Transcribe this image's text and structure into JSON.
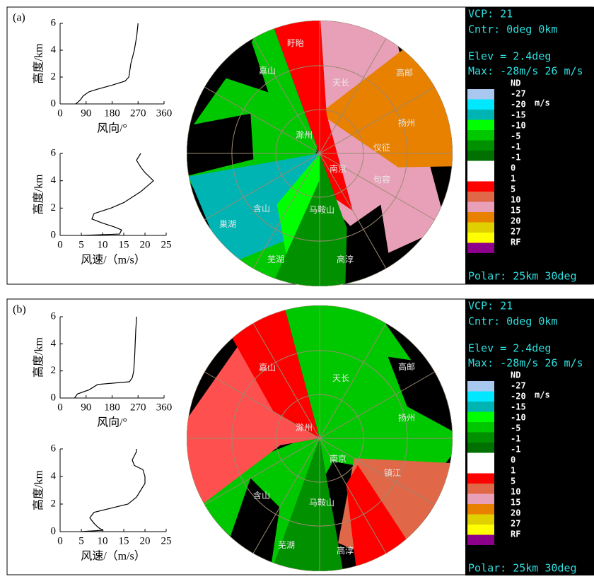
{
  "panels": [
    {
      "label": "(a)",
      "places": [
        "盱眙",
        "嘉山",
        "天长",
        "高邮",
        "滁州",
        "扬州",
        "仪征",
        "南京",
        "句容",
        "含山",
        "马鞍山",
        "巢湖",
        "芜湖",
        "高淳"
      ],
      "info": {
        "vcp": "VCP: 21",
        "cntr": "Cntr:  0deg  0km",
        "elev": "Elev = 2.4deg",
        "max": "Max: -28m/s  26 m/s",
        "unit": "m/s",
        "polar": "Polar:  25km 30deg",
        "legend_labels": [
          "ND",
          "-27",
          "-20",
          "-15",
          "-10",
          "-5",
          "-1",
          "-1",
          "0",
          "1",
          "5",
          "10",
          "15",
          "20",
          "27",
          "RF"
        ],
        "legend_colors": [
          "#a8c8f0",
          "#00e8ff",
          "#00b4b4",
          "#00ff00",
          "#00c800",
          "#009000",
          "#007000",
          "#ffffff",
          "#ffffff",
          "#ff0000",
          "#e06848",
          "#e8a0b8",
          "#e88000",
          "#e0d000",
          "#ffff00",
          "#8c008c"
        ]
      }
    },
    {
      "label": "(b)",
      "places": [
        "嘉山",
        "天长",
        "高邮",
        "滁州",
        "扬州",
        "南京",
        "镇江",
        "含山",
        "马鞍山",
        "芜湖",
        "高淳"
      ],
      "info": {
        "vcp": "VCP: 21",
        "cntr": "Cntr:  0deg  0km",
        "elev": "Elev = 2.4deg",
        "max": "Max: -28m/s  26 m/s",
        "unit": "m/s",
        "polar": "Polar:  25km 30deg",
        "legend_labels": [
          "ND",
          "-27",
          "-20",
          "-15",
          "-10",
          "-5",
          "-1",
          "-1",
          "0",
          "1",
          "5",
          "10",
          "15",
          "20",
          "27",
          "RF"
        ],
        "legend_colors": [
          "#a8c8f0",
          "#00e8ff",
          "#00b4b4",
          "#00ff00",
          "#00c800",
          "#009000",
          "#007000",
          "#ffffff",
          "#ffffff",
          "#ff0000",
          "#e06848",
          "#e8a0b8",
          "#e88000",
          "#e0d000",
          "#ffff00",
          "#8c008c"
        ]
      }
    }
  ],
  "chart_data": [
    {
      "type": "line",
      "x": [
        54,
        60,
        70,
        80,
        100,
        130,
        180,
        225,
        238,
        245,
        257,
        265,
        270
      ],
      "values": [
        0,
        0.1,
        0.3,
        0.6,
        0.9,
        1.1,
        1.4,
        1.7,
        2.0,
        3.0,
        4.0,
        5.0,
        6.0
      ],
      "xlim": [
        0,
        360
      ],
      "xticks": [
        0,
        90,
        180,
        270,
        360
      ],
      "ylim": [
        0,
        6
      ],
      "yticks": [
        0,
        2,
        4,
        6
      ],
      "xlabel": "风向/°",
      "ylabel": "高度/km",
      "color": "#000000"
    },
    {
      "type": "line",
      "x": [
        5,
        14,
        14.5,
        13,
        10,
        7.5,
        8,
        12,
        15,
        17,
        19,
        20.5,
        22,
        21,
        20,
        19,
        18,
        19
      ],
      "values": [
        0,
        0.1,
        0.4,
        0.6,
        0.9,
        1.2,
        1.6,
        2.0,
        2.4,
        2.8,
        3.2,
        3.6,
        4.0,
        4.3,
        4.6,
        5.0,
        5.5,
        6.0
      ],
      "xlim": [
        0,
        25
      ],
      "xticks": [
        0,
        5,
        10,
        15,
        20,
        25
      ],
      "ylim": [
        0,
        6
      ],
      "yticks": [
        0,
        2,
        4,
        6
      ],
      "xlabel": "风速/（m/s）",
      "ylabel": "高度/km",
      "color": "#000000"
    },
    {
      "type": "line",
      "x": [
        50,
        60,
        100,
        130,
        240,
        250,
        255,
        258,
        260,
        262,
        265
      ],
      "values": [
        0,
        0.3,
        0.6,
        1.0,
        1.2,
        1.5,
        2.0,
        3.0,
        4.0,
        5.0,
        6.0
      ],
      "xlim": [
        0,
        360
      ],
      "xticks": [
        0,
        90,
        180,
        270,
        360
      ],
      "ylim": [
        0,
        6
      ],
      "yticks": [
        0,
        2,
        4,
        6
      ],
      "xlabel": "风向/°",
      "ylabel": "高度/km",
      "color": "#000000"
    },
    {
      "type": "line",
      "x": [
        5,
        10,
        9,
        8,
        7,
        8,
        12,
        16,
        18,
        19,
        20,
        20,
        19.5,
        17.5,
        17,
        18,
        18
      ],
      "values": [
        0,
        0.1,
        0.3,
        0.6,
        1.0,
        1.4,
        1.7,
        2.0,
        2.5,
        3.0,
        3.5,
        4.0,
        4.5,
        4.8,
        5.2,
        5.8,
        6.0
      ],
      "xlim": [
        0,
        25
      ],
      "xticks": [
        0,
        5,
        10,
        15,
        20,
        25
      ],
      "ylim": [
        0,
        6
      ],
      "yticks": [
        0,
        2,
        4,
        6
      ],
      "xlabel": "风速/（m/s）",
      "ylabel": "高度/km",
      "color": "#000000"
    }
  ]
}
